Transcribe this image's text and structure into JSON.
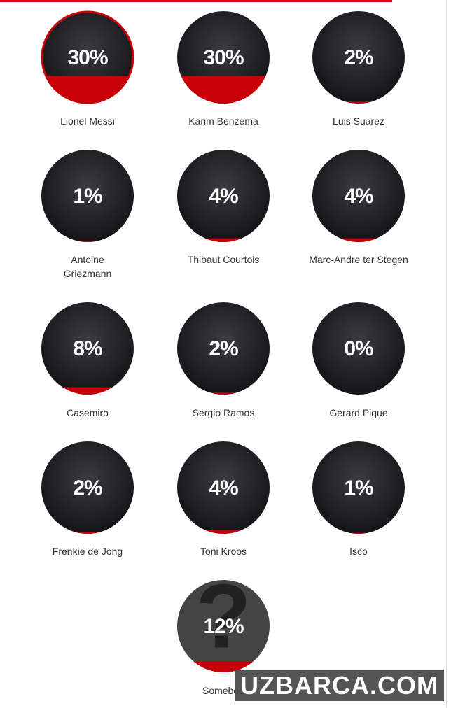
{
  "players": [
    {
      "name": "Lionel Messi",
      "value": 30,
      "label": "30%"
    },
    {
      "name": "Karim Benzema",
      "value": 30,
      "label": "30%"
    },
    {
      "name": "Luis Suarez",
      "value": 2,
      "label": "2%"
    },
    {
      "name": "Antoine Griezmann",
      "value": 1,
      "label": "1%"
    },
    {
      "name": "Thibaut Courtois",
      "value": 4,
      "label": "4%"
    },
    {
      "name": "Marc-Andre ter Stegen",
      "value": 4,
      "label": "4%"
    },
    {
      "name": "Casemiro",
      "value": 8,
      "label": "8%"
    },
    {
      "name": "Sergio Ramos",
      "value": 2,
      "label": "2%"
    },
    {
      "name": "Gerard Pique",
      "value": 0,
      "label": "0%"
    },
    {
      "name": "Frenkie de Jong",
      "value": 2,
      "label": "2%"
    },
    {
      "name": "Toni Kroos",
      "value": 4,
      "label": "4%"
    },
    {
      "name": "Isco",
      "value": 1,
      "label": "1%"
    },
    {
      "name": "Somebod",
      "value": 12,
      "label": "12%"
    }
  ],
  "watermark": "UZBARCA.COM"
}
